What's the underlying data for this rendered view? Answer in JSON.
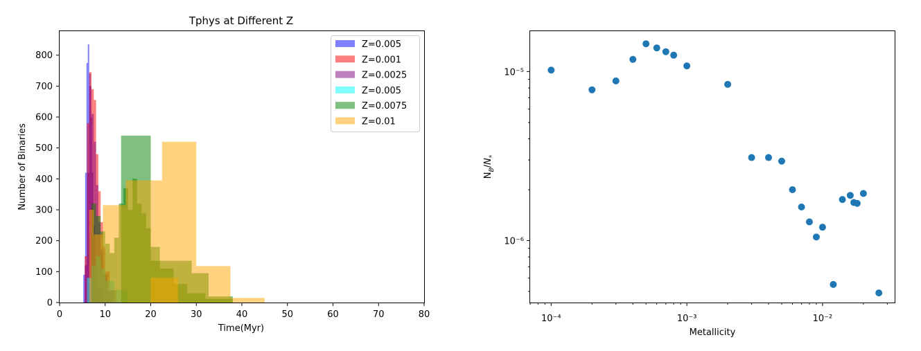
{
  "chart_data": [
    {
      "type": "histogram",
      "title": "Tphys at Different Z",
      "xlabel": "Time(Myr)",
      "ylabel": "Number of Binaries",
      "xlim": [
        0,
        80
      ],
      "ylim": [
        0,
        880
      ],
      "xticks": [
        "0",
        "10",
        "20",
        "30",
        "40",
        "50",
        "60",
        "70",
        "80"
      ],
      "yticks": [
        "0",
        "100",
        "200",
        "300",
        "400",
        "500",
        "600",
        "700",
        "800"
      ],
      "legend_position": "top-right",
      "series": [
        {
          "name": "Z=0.005",
          "color": "#0000ff",
          "alpha": 0.5,
          "bins": [
            [
              5.2,
              5.6,
              90
            ],
            [
              5.6,
              5.9,
              420
            ],
            [
              5.9,
              6.2,
              775
            ],
            [
              6.2,
              6.5,
              835
            ],
            [
              6.5,
              6.8,
              740
            ],
            [
              6.8,
              7.1,
              600
            ],
            [
              7.1,
              7.4,
              420
            ],
            [
              7.4,
              7.8,
              250
            ],
            [
              7.8,
              8.3,
              120
            ],
            [
              8.3,
              9.0,
              50
            ]
          ]
        },
        {
          "name": "Z=0.001",
          "color": "#ff0000",
          "alpha": 0.5,
          "bins": [
            [
              5.5,
              6.0,
              150
            ],
            [
              6.0,
              6.5,
              580
            ],
            [
              6.5,
              7.0,
              745
            ],
            [
              7.0,
              7.5,
              690
            ],
            [
              7.5,
              8.0,
              655
            ],
            [
              8.0,
              8.5,
              480
            ],
            [
              8.5,
              9.0,
              360
            ],
            [
              9.0,
              9.5,
              260
            ],
            [
              9.5,
              10.0,
              180
            ],
            [
              10.0,
              11.0,
              100
            ],
            [
              11.0,
              12.5,
              40
            ]
          ]
        },
        {
          "name": "Z=0.0025",
          "color": "#800080",
          "alpha": 0.5,
          "bins": [
            [
              5.5,
              6.0,
              120
            ],
            [
              6.0,
              6.5,
              420
            ],
            [
              6.5,
              7.0,
              700
            ],
            [
              7.0,
              7.5,
              610
            ],
            [
              7.5,
              8.0,
              520
            ],
            [
              8.0,
              8.5,
              380
            ],
            [
              8.5,
              9.0,
              260
            ],
            [
              9.0,
              9.5,
              170
            ],
            [
              9.5,
              10.5,
              90
            ],
            [
              10.5,
              12.0,
              40
            ]
          ]
        },
        {
          "name": "Z=0.005",
          "color": "#00ffff",
          "alpha": 0.5,
          "bins": [
            [
              6.0,
              7.0,
              80
            ],
            [
              7.0,
              8.0,
              120
            ],
            [
              8.0,
              9.0,
              150
            ],
            [
              9.0,
              10.0,
              110
            ],
            [
              10.0,
              12.0,
              70
            ],
            [
              12.0,
              15.0,
              40
            ]
          ]
        },
        {
          "name": "Z=0.0075",
          "color": "#008000",
          "alpha": 0.5,
          "bins": [
            [
              7.0,
              8.0,
              320
            ],
            [
              8.0,
              9.0,
              280
            ],
            [
              9.0,
              10.0,
              230
            ],
            [
              10.0,
              11.0,
              190
            ],
            [
              11.0,
              12.0,
              160
            ],
            [
              12.0,
              13.0,
              210
            ],
            [
              13.0,
              14.0,
              320
            ],
            [
              14.0,
              15.0,
              370
            ],
            [
              15.0,
              16.0,
              300
            ],
            [
              16.0,
              17.0,
              400
            ],
            [
              17.0,
              18.0,
              320
            ],
            [
              18.0,
              19.0,
              290
            ],
            [
              19.0,
              20.0,
              240
            ],
            [
              20.0,
              22.0,
              180
            ],
            [
              22.0,
              25.0,
              110
            ],
            [
              25.0,
              28.0,
              60
            ],
            [
              28.0,
              32.0,
              30
            ],
            [
              32.0,
              38.0,
              12
            ],
            [
              13.5,
              20.0,
              540
            ],
            [
              20.0,
              29.0,
              135
            ],
            [
              29.0,
              32.7,
              95
            ],
            [
              32.7,
              38.0,
              20
            ]
          ]
        },
        {
          "name": "Z=0.01",
          "color": "#ffa500",
          "alpha": 0.5,
          "bins": [
            [
              6.5,
              7.5,
              300
            ],
            [
              9.5,
              14.5,
              315
            ],
            [
              14.5,
              22.5,
              395
            ],
            [
              22.5,
              30.0,
              520
            ],
            [
              30.0,
              37.5,
              118
            ],
            [
              37.5,
              45.0,
              15
            ],
            [
              20.0,
              26.0,
              80
            ],
            [
              7.5,
              9.5,
              220
            ]
          ]
        }
      ]
    },
    {
      "type": "scatter",
      "title": "",
      "xlabel": "Metallicity",
      "ylabel": "N_B/N_*",
      "xscale": "log",
      "yscale": "log",
      "xlim": [
        7e-05,
        0.034
      ],
      "ylim": [
        4.3e-07,
        1.75e-05
      ],
      "xticks": [
        "10⁻⁴",
        "10⁻³",
        "10⁻²"
      ],
      "yticks": [
        "10⁻⁶",
        "10⁻⁵"
      ],
      "color": "#1f77b4",
      "x": [
        0.0001,
        0.0002,
        0.0003,
        0.0004,
        0.0005,
        0.0006,
        0.0007,
        0.0008,
        0.001,
        0.002,
        0.003,
        0.004,
        0.005,
        0.006,
        0.007,
        0.008,
        0.009,
        0.01,
        0.012,
        0.014,
        0.016,
        0.017,
        0.018,
        0.02,
        0.026
      ],
      "y": [
        1.02e-05,
        7.8e-06,
        8.8e-06,
        1.18e-05,
        1.46e-05,
        1.38e-05,
        1.31e-05,
        1.25e-05,
        1.08e-05,
        8.4e-06,
        3.1e-06,
        3.1e-06,
        2.95e-06,
        2e-06,
        1.58e-06,
        1.29e-06,
        1.05e-06,
        1.2e-06,
        5.5e-07,
        1.75e-06,
        1.85e-06,
        1.68e-06,
        1.66e-06,
        1.9e-06,
        4.9e-07
      ]
    }
  ]
}
